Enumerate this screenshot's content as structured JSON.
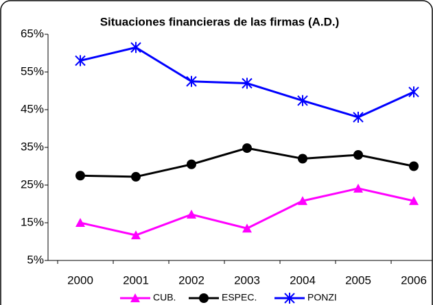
{
  "chart_data": {
    "type": "line",
    "title": "Situaciones financieras de las firmas (A.D.)",
    "categories": [
      "2000",
      "2001",
      "2002",
      "2003",
      "2004",
      "2005",
      "2006"
    ],
    "series": [
      {
        "name": "CUB.",
        "color": "#ff00ff",
        "marker": "triangle",
        "values": [
          15,
          11.7,
          17.2,
          13.5,
          20.8,
          24.1,
          20.8
        ]
      },
      {
        "name": "ESPEC.",
        "color": "#000000",
        "marker": "circle",
        "values": [
          27.5,
          27.2,
          30.5,
          34.8,
          32,
          33,
          30
        ]
      },
      {
        "name": "PONZI",
        "color": "#0000ff",
        "marker": "asterisk",
        "values": [
          58,
          61.5,
          52.5,
          52,
          47.4,
          43,
          49.7
        ]
      }
    ],
    "ylim": [
      5,
      65
    ],
    "yticks": [
      {
        "value": 5,
        "label": "5%"
      },
      {
        "value": 15,
        "label": "15%"
      },
      {
        "value": 25,
        "label": "25%"
      },
      {
        "value": 35,
        "label": "35%"
      },
      {
        "value": 45,
        "label": "45%"
      },
      {
        "value": 55,
        "label": "55%"
      },
      {
        "value": 65,
        "label": "65%"
      }
    ],
    "grid": false,
    "legend": "bottom"
  }
}
